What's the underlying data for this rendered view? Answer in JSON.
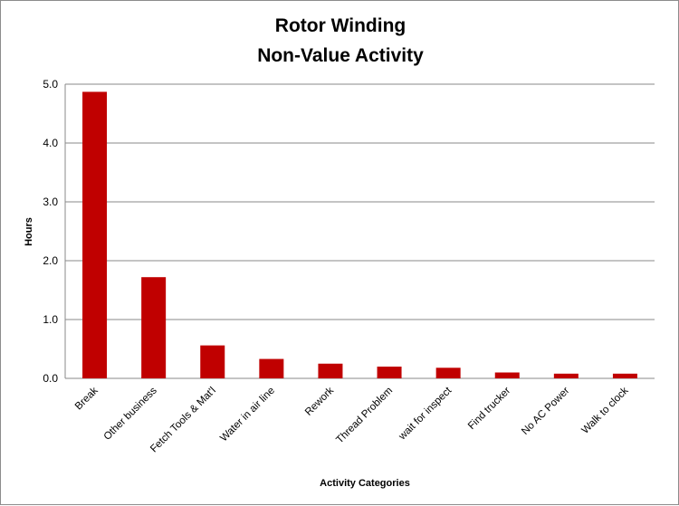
{
  "chart_data": {
    "type": "bar",
    "title": "Rotor Winding",
    "subtitle": "Non-Value Activity",
    "xlabel": "Activity Categories",
    "ylabel": "Hours",
    "ylim": [
      0,
      5
    ],
    "yticks": [
      "0.0",
      "1.0",
      "2.0",
      "3.0",
      "4.0",
      "5.0"
    ],
    "grid": true,
    "legend": "none",
    "bar_color": "#c00000",
    "categories": [
      "Break",
      "Other business",
      "Fetch Tools & Mat'l",
      "Water in air line",
      "Rework",
      "Thread Problem",
      "wait for inspect",
      "Find trucker",
      "No AC Power",
      "Walk to clock"
    ],
    "values": [
      4.87,
      1.72,
      0.56,
      0.33,
      0.25,
      0.2,
      0.18,
      0.1,
      0.08,
      0.08
    ]
  }
}
